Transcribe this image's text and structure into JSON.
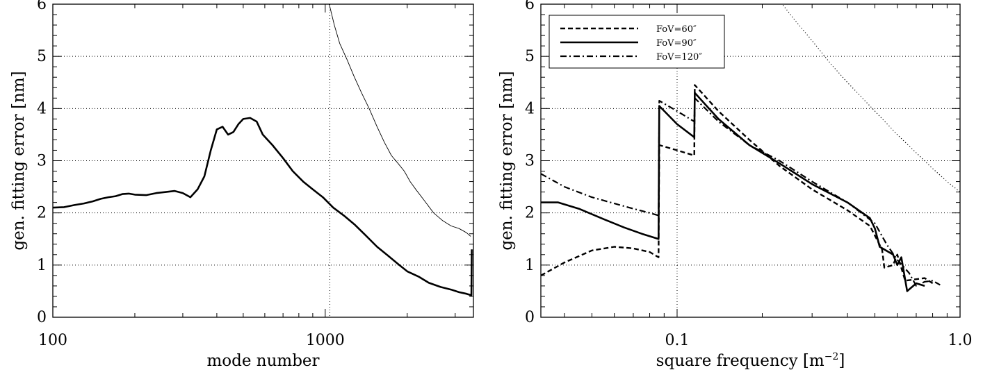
{
  "chart_data": [
    {
      "type": "line",
      "xscale": "log",
      "xlim": [
        100,
        3500
      ],
      "ylim": [
        0,
        6
      ],
      "xlabel": "mode number",
      "ylabel": "gen. fitting error [nm]",
      "xticks": [
        {
          "value": 100,
          "label": "100"
        },
        {
          "value": 1000,
          "label": "1000"
        }
      ],
      "yticks": [
        0,
        1,
        2,
        3,
        4,
        5,
        6
      ],
      "grid": true,
      "vlines": [
        1040
      ],
      "series": [
        {
          "style": "thick",
          "points": [
            [
              100,
              2.1
            ],
            [
              110,
              2.11
            ],
            [
              120,
              2.15
            ],
            [
              130,
              2.18
            ],
            [
              140,
              2.22
            ],
            [
              150,
              2.27
            ],
            [
              160,
              2.3
            ],
            [
              170,
              2.32
            ],
            [
              180,
              2.36
            ],
            [
              190,
              2.37
            ],
            [
              200,
              2.35
            ],
            [
              220,
              2.34
            ],
            [
              240,
              2.38
            ],
            [
              260,
              2.4
            ],
            [
              280,
              2.42
            ],
            [
              300,
              2.38
            ],
            [
              320,
              2.3
            ],
            [
              340,
              2.45
            ],
            [
              360,
              2.7
            ],
            [
              380,
              3.2
            ],
            [
              400,
              3.6
            ],
            [
              420,
              3.65
            ],
            [
              440,
              3.5
            ],
            [
              460,
              3.55
            ],
            [
              480,
              3.7
            ],
            [
              500,
              3.8
            ],
            [
              530,
              3.82
            ],
            [
              560,
              3.75
            ],
            [
              590,
              3.5
            ],
            [
              640,
              3.3
            ],
            [
              700,
              3.05
            ],
            [
              760,
              2.8
            ],
            [
              830,
              2.6
            ],
            [
              900,
              2.45
            ],
            [
              980,
              2.3
            ],
            [
              1070,
              2.1
            ],
            [
              1170,
              1.95
            ],
            [
              1280,
              1.78
            ],
            [
              1400,
              1.58
            ],
            [
              1550,
              1.35
            ],
            [
              1700,
              1.18
            ],
            [
              1850,
              1.02
            ],
            [
              2000,
              0.88
            ],
            [
              2200,
              0.78
            ],
            [
              2400,
              0.66
            ],
            [
              2650,
              0.58
            ],
            [
              2900,
              0.53
            ],
            [
              3100,
              0.48
            ],
            [
              3300,
              0.45
            ],
            [
              3440,
              0.42
            ],
            [
              3450,
              1.3
            ]
          ]
        },
        {
          "style": "thin",
          "points": [
            [
              1010,
              6.2
            ],
            [
              1040,
              5.95
            ],
            [
              1080,
              5.6
            ],
            [
              1130,
              5.25
            ],
            [
              1200,
              4.95
            ],
            [
              1280,
              4.6
            ],
            [
              1360,
              4.3
            ],
            [
              1450,
              4.0
            ],
            [
              1550,
              3.65
            ],
            [
              1650,
              3.35
            ],
            [
              1750,
              3.1
            ],
            [
              1850,
              2.95
            ],
            [
              1950,
              2.8
            ],
            [
              2050,
              2.6
            ],
            [
              2150,
              2.45
            ],
            [
              2300,
              2.25
            ],
            [
              2500,
              2.0
            ],
            [
              2700,
              1.85
            ],
            [
              2900,
              1.75
            ],
            [
              3100,
              1.7
            ],
            [
              3300,
              1.62
            ],
            [
              3420,
              1.55
            ]
          ]
        }
      ]
    },
    {
      "type": "line",
      "xscale": "log",
      "xlim": [
        0.033,
        1.0
      ],
      "ylim": [
        0,
        6
      ],
      "xlabel": "square frequency [m",
      "xlabel_sup": "−2",
      "xlabel_end": "]",
      "ylabel": "gen. fitting error [nm]",
      "xticks": [
        {
          "value": 0.1,
          "label": "0.1"
        },
        {
          "value": 1.0,
          "label": "1.0"
        }
      ],
      "yticks": [
        0,
        1,
        2,
        3,
        4,
        5,
        6
      ],
      "grid": true,
      "vlines": [
        0.1
      ],
      "legend": "top-left",
      "series": [
        {
          "name": "FoV=60″",
          "style": "dashed",
          "points": [
            [
              0.033,
              0.8
            ],
            [
              0.04,
              1.05
            ],
            [
              0.05,
              1.28
            ],
            [
              0.06,
              1.35
            ],
            [
              0.07,
              1.32
            ],
            [
              0.08,
              1.25
            ],
            [
              0.086,
              1.15
            ],
            [
              0.0865,
              3.3
            ],
            [
              0.1,
              3.2
            ],
            [
              0.115,
              3.1
            ],
            [
              0.1155,
              4.45
            ],
            [
              0.14,
              3.95
            ],
            [
              0.18,
              3.4
            ],
            [
              0.23,
              2.9
            ],
            [
              0.3,
              2.45
            ],
            [
              0.4,
              2.05
            ],
            [
              0.48,
              1.75
            ],
            [
              0.53,
              1.3
            ],
            [
              0.54,
              0.95
            ],
            [
              0.58,
              1.0
            ],
            [
              0.6,
              1.2
            ],
            [
              0.64,
              0.7
            ],
            [
              0.68,
              0.72
            ],
            [
              0.75,
              0.75
            ],
            [
              0.8,
              0.65
            ]
          ]
        },
        {
          "name": "FoV=90″",
          "style": "solid",
          "points": [
            [
              0.033,
              2.2
            ],
            [
              0.038,
              2.2
            ],
            [
              0.045,
              2.08
            ],
            [
              0.055,
              1.88
            ],
            [
              0.065,
              1.72
            ],
            [
              0.075,
              1.6
            ],
            [
              0.086,
              1.5
            ],
            [
              0.0865,
              4.05
            ],
            [
              0.1,
              3.7
            ],
            [
              0.115,
              3.45
            ],
            [
              0.1155,
              4.3
            ],
            [
              0.14,
              3.8
            ],
            [
              0.18,
              3.3
            ],
            [
              0.23,
              2.95
            ],
            [
              0.3,
              2.55
            ],
            [
              0.4,
              2.2
            ],
            [
              0.48,
              1.9
            ],
            [
              0.5,
              1.7
            ],
            [
              0.52,
              1.35
            ],
            [
              0.58,
              1.2
            ],
            [
              0.6,
              1.0
            ],
            [
              0.62,
              1.15
            ],
            [
              0.65,
              0.5
            ],
            [
              0.7,
              0.65
            ],
            [
              0.75,
              0.6
            ]
          ]
        },
        {
          "name": "FoV=120″",
          "style": "dashdot",
          "points": [
            [
              0.033,
              2.75
            ],
            [
              0.04,
              2.5
            ],
            [
              0.05,
              2.3
            ],
            [
              0.06,
              2.18
            ],
            [
              0.07,
              2.08
            ],
            [
              0.08,
              2.0
            ],
            [
              0.086,
              1.95
            ],
            [
              0.0865,
              4.15
            ],
            [
              0.1,
              3.95
            ],
            [
              0.115,
              3.75
            ],
            [
              0.1155,
              4.2
            ],
            [
              0.14,
              3.75
            ],
            [
              0.18,
              3.3
            ],
            [
              0.23,
              3.0
            ],
            [
              0.3,
              2.6
            ],
            [
              0.4,
              2.2
            ],
            [
              0.5,
              1.8
            ],
            [
              0.55,
              1.4
            ],
            [
              0.6,
              1.1
            ],
            [
              0.66,
              0.85
            ],
            [
              0.7,
              0.6
            ],
            [
              0.75,
              0.68
            ],
            [
              0.8,
              0.7
            ],
            [
              0.85,
              0.62
            ]
          ]
        },
        {
          "style": "dotted",
          "points": [
            [
              0.22,
              6.2
            ],
            [
              0.26,
              5.7
            ],
            [
              0.3,
              5.3
            ],
            [
              0.35,
              4.85
            ],
            [
              0.4,
              4.5
            ],
            [
              0.5,
              3.95
            ],
            [
              0.6,
              3.5
            ],
            [
              0.7,
              3.15
            ],
            [
              0.8,
              2.85
            ],
            [
              0.9,
              2.6
            ],
            [
              1.0,
              2.4
            ]
          ]
        }
      ]
    }
  ]
}
